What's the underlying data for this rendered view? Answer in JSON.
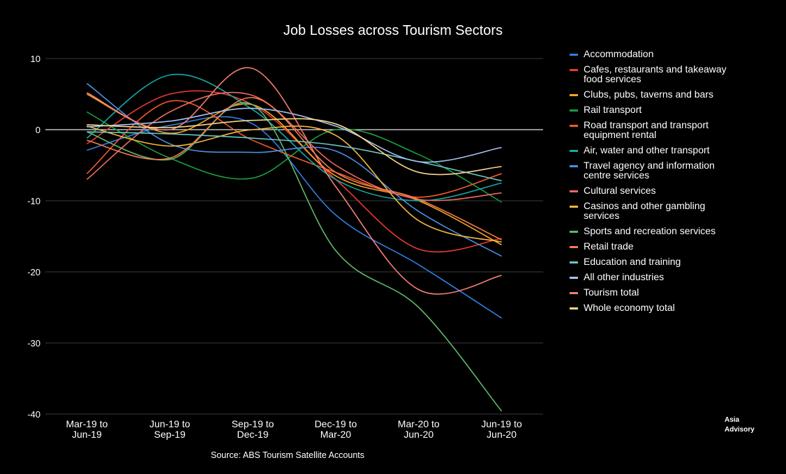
{
  "chart_data": {
    "type": "line",
    "title": "Job Losses across Tourism Sectors",
    "source": "Source: ABS Tourism Satellite Accounts",
    "watermark": [
      "Asia",
      "Advisory"
    ],
    "xlabel": "",
    "ylabel": "",
    "ylim": [
      -40,
      10
    ],
    "yticks": [
      10,
      0,
      -10,
      -20,
      -30,
      -40
    ],
    "categories": [
      [
        "Mar-19 to",
        "Jun-19"
      ],
      [
        "Jun-19 to",
        "Sep-19"
      ],
      [
        "Sep-19 to",
        "Dec-19"
      ],
      [
        "Dec-19 to",
        "Mar-20"
      ],
      [
        "Mar-20 to",
        "Jun-20"
      ],
      [
        "Jun-19 to",
        "Jun-20"
      ]
    ],
    "series": [
      {
        "name": "Accommodation",
        "label_lines": [
          "Accommodation"
        ],
        "color": "#2e7fe0",
        "values": [
          -2.9,
          0.6,
          0.8,
          -12.0,
          -19.0,
          -26.5
        ]
      },
      {
        "name": "Cafes, restaurants and takeaway food services",
        "label_lines": [
          "Cafes, restaurants and takeaway",
          "food services"
        ],
        "color": "#e8392f",
        "values": [
          -2.0,
          5.0,
          3.5,
          -7.0,
          -16.8,
          -15.3
        ]
      },
      {
        "name": "Clubs, pubs, taverns and bars",
        "label_lines": [
          "Clubs, pubs, taverns and bars"
        ],
        "color": "#f5a623",
        "values": [
          5.0,
          -0.5,
          3.5,
          -6.5,
          -10.0,
          -16.2
        ]
      },
      {
        "name": "Rail transport",
        "label_lines": [
          "Rail transport"
        ],
        "color": "#1a9e3f",
        "values": [
          2.5,
          -4.0,
          -6.8,
          0.0,
          -3.5,
          -10.2
        ]
      },
      {
        "name": "Road transport and transport equipment rental",
        "label_lines": [
          "Road transport and transport",
          "equipment rental"
        ],
        "color": "#f05a28",
        "values": [
          -6.2,
          4.0,
          -1.5,
          -6.0,
          -9.5,
          -6.2
        ]
      },
      {
        "name": "Air, water and other transport",
        "label_lines": [
          "Air, water and other transport"
        ],
        "color": "#16a9a9",
        "values": [
          -1.2,
          7.7,
          2.8,
          -7.0,
          -10.0,
          -7.5
        ]
      },
      {
        "name": "Travel agency and information centre services",
        "label_lines": [
          "Travel agency and information",
          "centre services"
        ],
        "color": "#4a90e2",
        "values": [
          6.5,
          -2.0,
          -3.2,
          -3.0,
          -11.5,
          -17.8
        ]
      },
      {
        "name": "Cultural services",
        "label_lines": [
          "Cultural services"
        ],
        "color": "#ee6a5e",
        "values": [
          -7.0,
          2.5,
          4.8,
          -5.0,
          -9.8,
          -8.9
        ]
      },
      {
        "name": "Casinos and other gambling services",
        "label_lines": [
          "Casinos and other gambling",
          "services"
        ],
        "color": "#f8b73c",
        "values": [
          0.5,
          -2.3,
          0.0,
          -0.8,
          -12.8,
          -15.8
        ]
      },
      {
        "name": "Sports and recreation services",
        "label_lines": [
          "Sports and recreation services"
        ],
        "color": "#5fb86a",
        "values": [
          -0.3,
          -4.2,
          3.5,
          -17.0,
          -25.0,
          -39.6
        ]
      },
      {
        "name": "Retail trade",
        "label_lines": [
          "Retail trade"
        ],
        "color": "#f57c50",
        "values": [
          -1.5,
          -4.0,
          4.5,
          -6.0,
          -9.8,
          -15.5
        ]
      },
      {
        "name": "Education and training",
        "label_lines": [
          "Education and training"
        ],
        "color": "#69c6c6",
        "values": [
          -0.3,
          -0.6,
          -1.2,
          -2.2,
          -4.5,
          -7.2
        ]
      },
      {
        "name": "All other industries",
        "label_lines": [
          "All other industries"
        ],
        "color": "#a5c4f2",
        "values": [
          0.4,
          1.2,
          3.0,
          0.5,
          -4.5,
          -2.5
        ]
      },
      {
        "name": "Tourism total",
        "label_lines": [
          "Tourism total"
        ],
        "color": "#f47e74",
        "values": [
          5.2,
          0.0,
          8.6,
          -8.0,
          -22.5,
          -20.5
        ]
      },
      {
        "name": "Whole economy total",
        "label_lines": [
          "Whole economy total"
        ],
        "color": "#fdd68a",
        "values": [
          0.7,
          0.3,
          1.3,
          0.8,
          -6.0,
          -5.2
        ]
      }
    ]
  }
}
